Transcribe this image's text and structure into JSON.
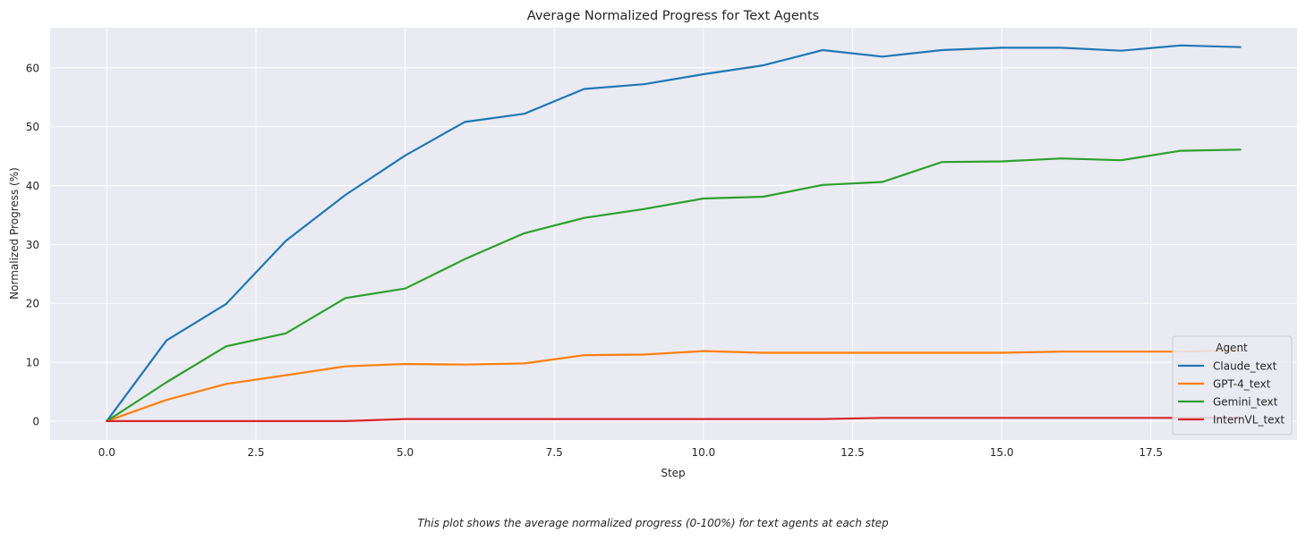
{
  "chart_data": {
    "type": "line",
    "title": "Average Normalized Progress for Text Agents",
    "xlabel": "Step",
    "ylabel": "Normalized Progress (%)",
    "xlim": [
      -0.95,
      19.95
    ],
    "ylim": [
      -3.2,
      66.8
    ],
    "x_ticks": [
      0.0,
      2.5,
      5.0,
      7.5,
      10.0,
      12.5,
      15.0,
      17.5
    ],
    "x_tick_labels": [
      "0.0",
      "2.5",
      "5.0",
      "7.5",
      "10.0",
      "12.5",
      "15.0",
      "17.5"
    ],
    "y_ticks": [
      0,
      10,
      20,
      30,
      40,
      50,
      60
    ],
    "y_tick_labels": [
      "0",
      "10",
      "20",
      "30",
      "40",
      "50",
      "60"
    ],
    "grid": true,
    "legend": {
      "title": "Agent",
      "placement": "lower-right"
    },
    "x": [
      0,
      1,
      2,
      3,
      4,
      5,
      6,
      7,
      8,
      9,
      10,
      11,
      12,
      13,
      14,
      15,
      16,
      17,
      18,
      19
    ],
    "series": [
      {
        "name": "Claude_text",
        "color": "#1f77b4",
        "values": [
          0,
          13.7,
          19.9,
          30.6,
          38.4,
          45.1,
          50.8,
          52.2,
          56.4,
          57.2,
          58.9,
          60.4,
          63.0,
          61.9,
          63.0,
          63.4,
          63.4,
          62.9,
          63.8,
          63.5
        ]
      },
      {
        "name": "GPT-4_text",
        "color": "#ff7f0e",
        "values": [
          0,
          3.6,
          6.3,
          7.8,
          9.3,
          9.7,
          9.6,
          9.8,
          11.2,
          11.3,
          11.9,
          11.6,
          11.6,
          11.6,
          11.6,
          11.6,
          11.8,
          11.8,
          11.8,
          12.0
        ]
      },
      {
        "name": "Gemini_text",
        "color": "#2ca02c",
        "values": [
          0,
          6.6,
          12.7,
          14.9,
          20.9,
          22.5,
          27.5,
          31.9,
          34.5,
          36.0,
          37.8,
          38.1,
          40.1,
          40.6,
          44.0,
          44.1,
          44.6,
          44.3,
          45.9,
          46.1
        ]
      },
      {
        "name": "InternVL_text",
        "color": "#d62728",
        "values": [
          0,
          0,
          0,
          0,
          0,
          0.35,
          0.35,
          0.35,
          0.35,
          0.35,
          0.35,
          0.35,
          0.35,
          0.55,
          0.55,
          0.55,
          0.55,
          0.55,
          0.55,
          0.55
        ]
      }
    ]
  },
  "caption": "This plot shows the average normalized progress (0-100%) for text agents at each step"
}
